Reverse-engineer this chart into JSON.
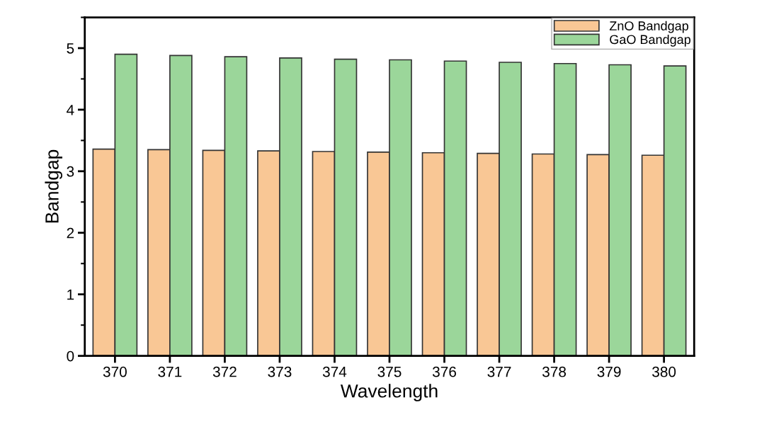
{
  "chart_data": {
    "type": "bar",
    "xlabel": "Wavelength",
    "ylabel": "Bandgap",
    "categories": [
      "370",
      "371",
      "372",
      "373",
      "374",
      "375",
      "376",
      "377",
      "378",
      "379",
      "380"
    ],
    "series": [
      {
        "name": "ZnO Bandgap",
        "color": "#f9c795",
        "values": [
          3.36,
          3.35,
          3.34,
          3.33,
          3.32,
          3.31,
          3.3,
          3.29,
          3.28,
          3.27,
          3.26
        ]
      },
      {
        "name": "GaO Bandgap",
        "color": "#9bd69a",
        "values": [
          4.9,
          4.88,
          4.86,
          4.84,
          4.82,
          4.81,
          4.79,
          4.77,
          4.75,
          4.73,
          4.71
        ]
      }
    ],
    "ylim": [
      0,
      5.5
    ],
    "yticks": [
      0,
      1,
      2,
      3,
      4,
      5
    ],
    "grid": false,
    "legend": "top right"
  }
}
